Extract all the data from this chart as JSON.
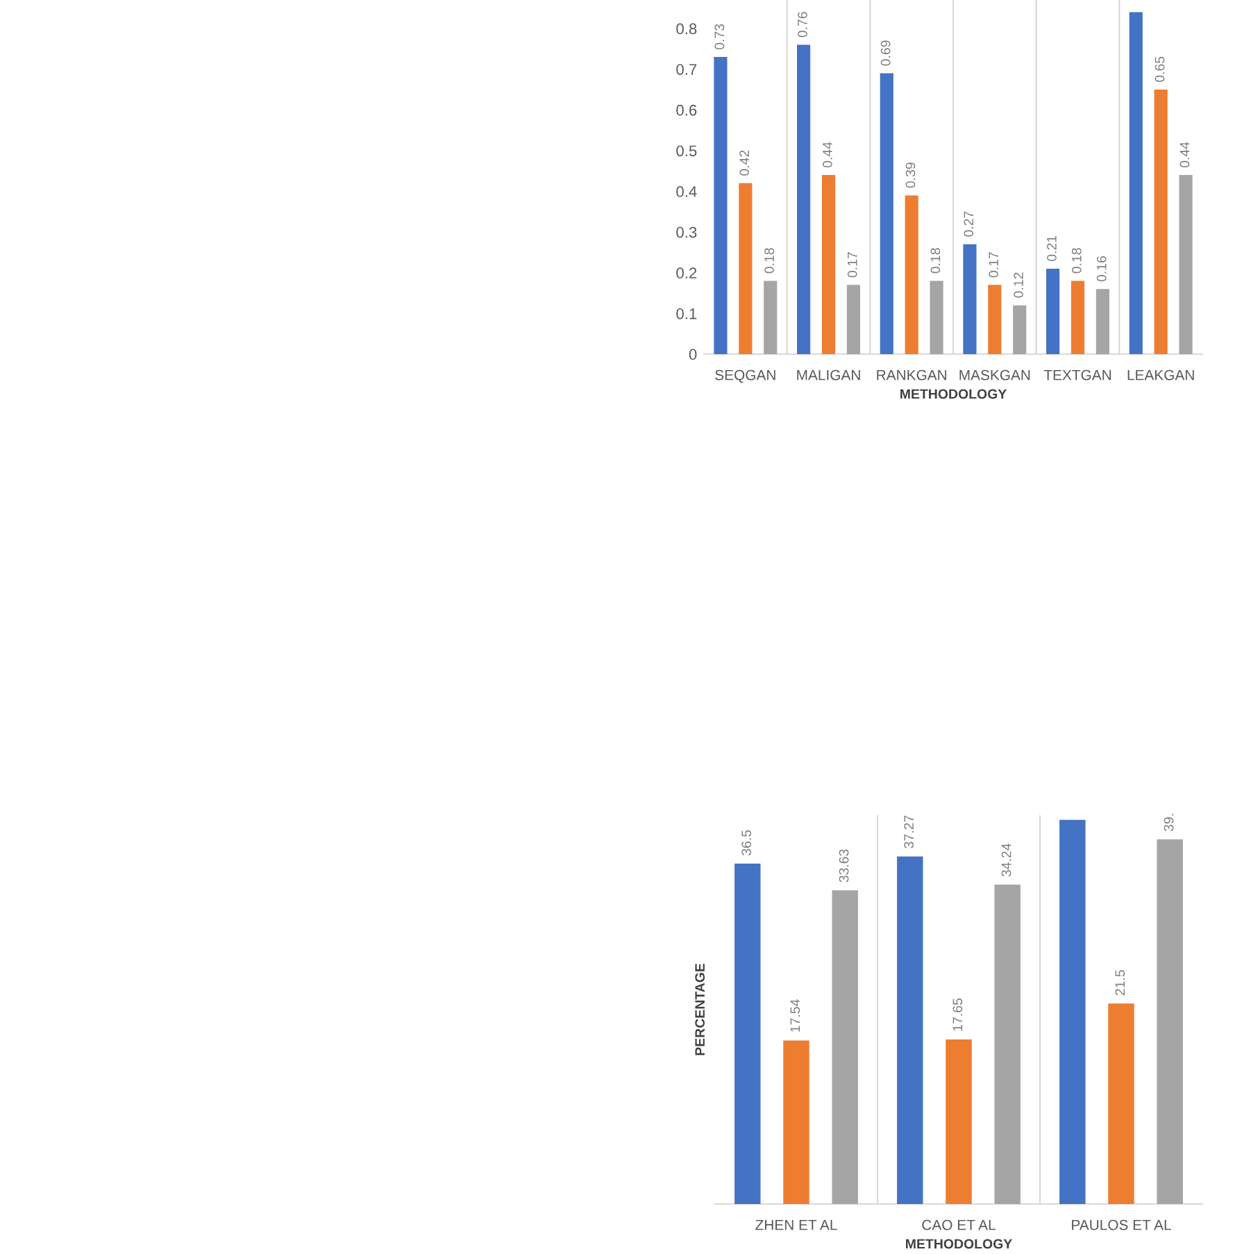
{
  "chart_data": [
    {
      "type": "bar",
      "xlabel": "METHODOLOGY",
      "categories": [
        "SEQGAN",
        "MALIGAN",
        "RANKGAN",
        "MASKGAN",
        "TEXTGAN",
        "LEAKGAN"
      ],
      "ylim": [
        0,
        0.87
      ],
      "yticks": [
        0,
        0.1,
        0.2,
        0.3,
        0.4,
        0.5,
        0.6,
        0.7,
        0.8
      ],
      "grid": "x",
      "legend": false,
      "series": [
        {
          "color": "#4472c4",
          "values": [
            0.73,
            0.76,
            0.69,
            0.27,
            0.21,
            0.84
          ],
          "value_labels": [
            "0.73",
            "0.76",
            "0.69",
            "0.27",
            "0.21",
            null
          ]
        },
        {
          "color": "#ed7d31",
          "values": [
            0.42,
            0.44,
            0.39,
            0.17,
            0.18,
            0.65
          ],
          "value_labels": [
            "0.42",
            "0.44",
            "0.39",
            "0.17",
            "0.18",
            "0.65"
          ]
        },
        {
          "color": "#a5a5a5",
          "values": [
            0.18,
            0.17,
            0.18,
            0.12,
            0.16,
            0.44
          ],
          "value_labels": [
            "0.18",
            "0.17",
            "0.18",
            "0.12",
            "0.16",
            "0.44"
          ]
        }
      ]
    },
    {
      "type": "bar",
      "xlabel": "METHODOLOGY",
      "ylabel": "PERCENTAGE",
      "categories": [
        "ZHEN ET AL",
        "CAO ET AL",
        "PAULOS ET AL"
      ],
      "grid": "x",
      "legend": false,
      "tick_labels": "x",
      "series": [
        {
          "color": "#4472c4",
          "values": [
            36.5,
            37.27,
            41.2
          ],
          "value_labels": [
            "36.5",
            "37.27",
            null
          ]
        },
        {
          "color": "#ed7d31",
          "values": [
            17.54,
            17.65,
            21.5
          ],
          "value_labels": [
            "17.54",
            "17.65",
            "21.5"
          ]
        },
        {
          "color": "#a5a5a5",
          "values": [
            33.63,
            34.24,
            39.1
          ],
          "value_labels": [
            "33.63",
            "34.24",
            "39."
          ]
        }
      ]
    }
  ]
}
